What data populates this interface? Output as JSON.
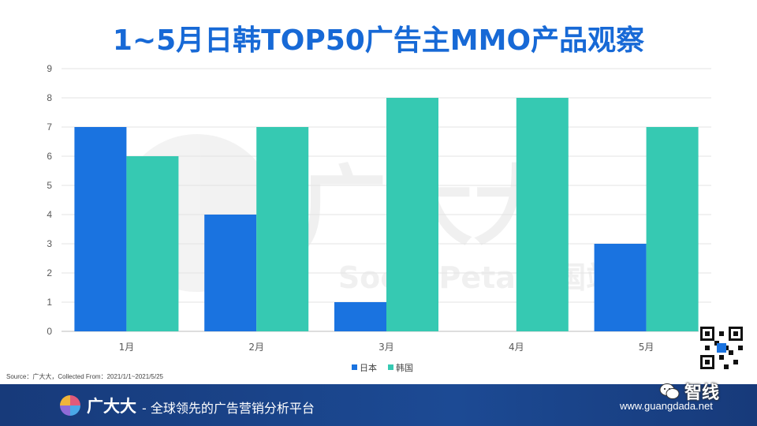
{
  "title": "1~5月日韩TOP50广告主MMO产品观察",
  "source_note": "Source：广大大，Collected From：2021/1/1~2021/5/25",
  "watermark": {
    "main": "广大大",
    "sub": "SocialPeta 中国站"
  },
  "footer": {
    "brand": "广大大",
    "slogan": "- 全球领先的广告营销分析平台",
    "website": "www.guangdada.net",
    "wechat_label": "智线"
  },
  "colors": {
    "japan": "#1a73e0",
    "korea": "#36c9b2",
    "title": "#1769d6",
    "footer": "#1c4a94"
  },
  "chart_data": {
    "type": "bar",
    "title": "1~5月日韩TOP50广告主MMO产品观察",
    "categories": [
      "1月",
      "2月",
      "3月",
      "4月",
      "5月"
    ],
    "series": [
      {
        "name": "日本",
        "values": [
          7,
          4,
          1,
          0,
          3
        ]
      },
      {
        "name": "韩国",
        "values": [
          6,
          7,
          8,
          8,
          7
        ]
      }
    ],
    "ylim": [
      0,
      9
    ],
    "yticks": [
      "0",
      "1",
      "2",
      "3",
      "4",
      "5",
      "6",
      "7",
      "8",
      "9"
    ],
    "xlabel": "",
    "ylabel": "",
    "grid": true,
    "legend": "bottom"
  }
}
